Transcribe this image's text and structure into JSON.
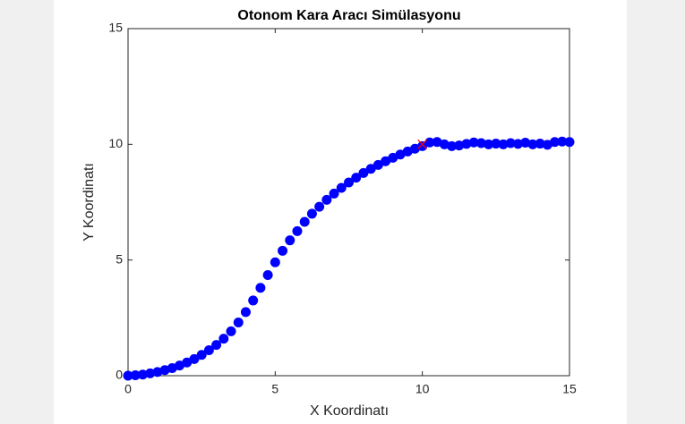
{
  "chart_data": {
    "type": "scatter",
    "title": "Otonom Kara Aracı Simülasyonu",
    "x_label": "X Koordinatı",
    "y_label": "Y Koordinatı",
    "series": [
      {
        "color": "#0000ff",
        "marker": "circle",
        "x": [
          0,
          0.25,
          0.5,
          0.75,
          1,
          1.25,
          1.5,
          1.75,
          2,
          2.25,
          2.5,
          2.75,
          3,
          3.25,
          3.5,
          3.75,
          4,
          4.25,
          4.5,
          4.75,
          5,
          5.25,
          5.5,
          5.75,
          6,
          6.25,
          6.5,
          6.75,
          7,
          7.25,
          7.5,
          7.75,
          8,
          8.25,
          8.5,
          8.75,
          9,
          9.25,
          9.5,
          9.75,
          10,
          10.25,
          10.5,
          10.75,
          11,
          11.25,
          11.5,
          11.75,
          12,
          12.25,
          12.5,
          12.75,
          13,
          13.25,
          13.5,
          13.75,
          14,
          14.25,
          14.5,
          14.75,
          15
        ],
        "values": [
          0,
          0.02,
          0.05,
          0.1,
          0.16,
          0.24,
          0.33,
          0.44,
          0.57,
          0.72,
          0.9,
          1.1,
          1.33,
          1.6,
          1.92,
          2.3,
          2.75,
          3.25,
          3.8,
          4.35,
          4.9,
          5.4,
          5.85,
          6.25,
          6.65,
          7.0,
          7.3,
          7.6,
          7.87,
          8.12,
          8.35,
          8.56,
          8.76,
          8.94,
          9.11,
          9.27,
          9.42,
          9.56,
          9.69,
          9.81,
          9.92,
          10.08,
          10.1,
          10.0,
          9.92,
          9.95,
          10.02,
          10.08,
          10.05,
          10.0,
          10.03,
          10.0,
          10.05,
          10.02,
          10.07,
          10.0,
          10.03,
          9.98,
          10.1,
          10.12,
          10.1
        ]
      },
      {
        "color": "#ff0000",
        "marker": "x",
        "x": [
          10
        ],
        "values": [
          10
        ]
      }
    ],
    "xlim": [
      0,
      15
    ],
    "ylim": [
      0,
      15
    ],
    "xticks": [
      0,
      5,
      10,
      15
    ],
    "yticks": [
      0,
      5,
      10,
      15
    ],
    "grid": false
  }
}
